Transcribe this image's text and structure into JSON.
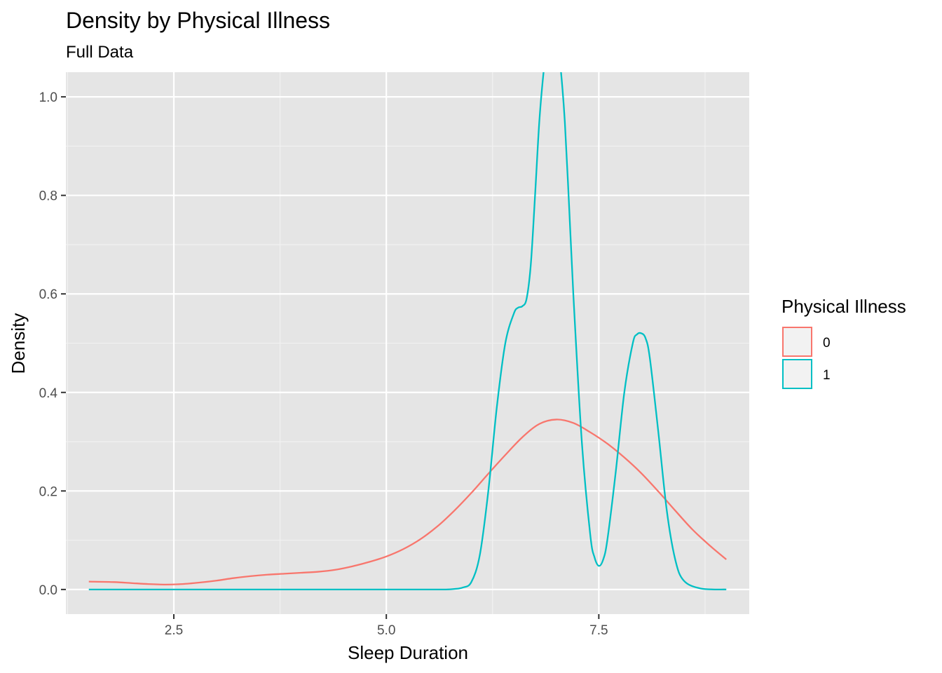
{
  "chart_data": {
    "type": "line",
    "title": "Density by Physical Illness",
    "subtitle": "Full Data",
    "xlabel": "Sleep Duration",
    "ylabel": "Density",
    "xlim": [
      1.23,
      9.27
    ],
    "ylim": [
      -0.05,
      1.05
    ],
    "x_ticks": [
      2.5,
      5.0,
      7.5
    ],
    "x_tick_labels": [
      "2.5",
      "5.0",
      "7.5"
    ],
    "y_ticks": [
      0.0,
      0.2,
      0.4,
      0.6,
      0.8,
      1.0
    ],
    "y_tick_labels": [
      "0.0",
      "0.2",
      "0.4",
      "0.6",
      "0.8",
      "1.0"
    ],
    "panel_background": "#e5e5e5",
    "grid": true,
    "legend": {
      "title": "Physical Illness",
      "position": "right",
      "entries": [
        "0",
        "1"
      ]
    },
    "series": [
      {
        "name": "0",
        "color": "#F8766D",
        "x": [
          1.5,
          1.8,
          2.0,
          2.2,
          2.4,
          2.6,
          2.8,
          3.0,
          3.2,
          3.4,
          3.6,
          3.8,
          4.0,
          4.2,
          4.4,
          4.6,
          4.8,
          5.0,
          5.2,
          5.4,
          5.6,
          5.8,
          6.0,
          6.2,
          6.4,
          6.6,
          6.8,
          7.0,
          7.2,
          7.4,
          7.6,
          7.8,
          8.0,
          8.2,
          8.4,
          8.6,
          8.8,
          9.0
        ],
        "y": [
          0.016,
          0.015,
          0.013,
          0.011,
          0.01,
          0.011,
          0.014,
          0.018,
          0.023,
          0.027,
          0.03,
          0.032,
          0.034,
          0.036,
          0.04,
          0.047,
          0.056,
          0.067,
          0.082,
          0.102,
          0.128,
          0.16,
          0.196,
          0.235,
          0.273,
          0.309,
          0.336,
          0.345,
          0.338,
          0.319,
          0.296,
          0.268,
          0.236,
          0.199,
          0.16,
          0.122,
          0.09,
          0.061
        ]
      },
      {
        "name": "1",
        "color": "#00BFC4",
        "x": [
          1.5,
          2.0,
          3.0,
          4.0,
          5.0,
          5.5,
          5.7,
          5.8,
          5.9,
          6.0,
          6.1,
          6.2,
          6.3,
          6.4,
          6.5,
          6.55,
          6.6,
          6.65,
          6.7,
          6.75,
          6.8,
          6.85,
          6.9,
          6.95,
          7.0,
          7.05,
          7.1,
          7.15,
          7.2,
          7.3,
          7.4,
          7.45,
          7.5,
          7.55,
          7.6,
          7.7,
          7.8,
          7.9,
          7.95,
          8.0,
          8.05,
          8.1,
          8.2,
          8.3,
          8.4,
          8.5,
          8.7,
          9.0
        ],
        "y": [
          0.0,
          0.0,
          0.0,
          0.0,
          0.0,
          0.0,
          0.0,
          0.001,
          0.004,
          0.015,
          0.07,
          0.2,
          0.37,
          0.5,
          0.56,
          0.572,
          0.575,
          0.59,
          0.66,
          0.8,
          0.95,
          1.05,
          1.12,
          1.15,
          1.13,
          1.06,
          0.95,
          0.78,
          0.6,
          0.3,
          0.11,
          0.065,
          0.048,
          0.06,
          0.1,
          0.24,
          0.4,
          0.5,
          0.518,
          0.52,
          0.51,
          0.47,
          0.32,
          0.16,
          0.06,
          0.018,
          0.002,
          0.0
        ]
      }
    ]
  }
}
